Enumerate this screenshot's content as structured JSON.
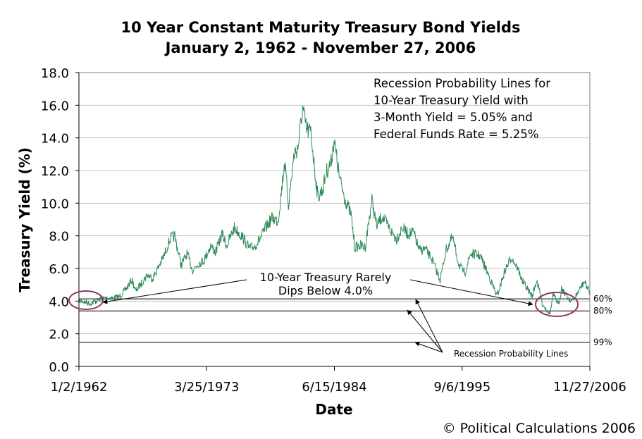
{
  "chart_data": {
    "type": "line",
    "title": "10 Year Constant Maturity Treasury Bond Yields",
    "subtitle": "January 2, 1962 - November 27, 2006",
    "xlabel": "Date",
    "ylabel": "Treasury Yield (%)",
    "ylim": [
      0,
      18
    ],
    "yticks": [
      "0.0",
      "2.0",
      "4.0",
      "6.0",
      "8.0",
      "10.0",
      "12.0",
      "14.0",
      "16.0",
      "18.0"
    ],
    "xlim": [
      "1962-01-02",
      "2006-11-27"
    ],
    "xticks": [
      "1/2/1962",
      "3/25/1973",
      "6/15/1984",
      "9/6/1995",
      "11/27/2006"
    ],
    "grid": true,
    "line_color": "#2e8b57",
    "series": [
      {
        "points": [
          [
            "1962-01-02",
            4.05
          ],
          [
            "1962-07-01",
            3.95
          ],
          [
            "1963-01-01",
            3.85
          ],
          [
            "1963-07-01",
            4.0
          ],
          [
            "1964-01-01",
            4.15
          ],
          [
            "1964-07-01",
            4.2
          ],
          [
            "1965-01-01",
            4.2
          ],
          [
            "1965-07-01",
            4.25
          ],
          [
            "1966-01-01",
            4.6
          ],
          [
            "1966-09-01",
            5.3
          ],
          [
            "1967-01-01",
            4.6
          ],
          [
            "1967-07-01",
            5.1
          ],
          [
            "1968-01-01",
            5.6
          ],
          [
            "1968-07-01",
            5.4
          ],
          [
            "1969-01-01",
            6.1
          ],
          [
            "1969-07-01",
            6.8
          ],
          [
            "1970-01-01",
            7.8
          ],
          [
            "1970-06-01",
            8.0
          ],
          [
            "1971-01-01",
            6.2
          ],
          [
            "1971-07-01",
            6.9
          ],
          [
            "1972-01-01",
            5.9
          ],
          [
            "1972-07-01",
            6.3
          ],
          [
            "1973-01-01",
            6.5
          ],
          [
            "1973-08-01",
            7.4
          ],
          [
            "1974-01-01",
            7.0
          ],
          [
            "1974-08-01",
            8.1
          ],
          [
            "1975-01-01",
            7.4
          ],
          [
            "1975-09-01",
            8.5
          ],
          [
            "1976-06-01",
            7.9
          ],
          [
            "1977-01-01",
            7.2
          ],
          [
            "1977-07-01",
            7.4
          ],
          [
            "1978-01-01",
            7.9
          ],
          [
            "1978-07-01",
            8.6
          ],
          [
            "1979-01-01",
            9.1
          ],
          [
            "1979-07-01",
            8.9
          ],
          [
            "1979-10-01",
            10.4
          ],
          [
            "1980-02-01",
            12.6
          ],
          [
            "1980-06-01",
            9.9
          ],
          [
            "1980-12-01",
            13.0
          ],
          [
            "1981-04-01",
            13.4
          ],
          [
            "1981-09-01",
            15.8
          ],
          [
            "1982-01-01",
            14.5
          ],
          [
            "1982-06-01",
            14.3
          ],
          [
            "1982-09-01",
            12.4
          ],
          [
            "1983-01-01",
            10.4
          ],
          [
            "1983-06-01",
            10.8
          ],
          [
            "1983-10-01",
            11.9
          ],
          [
            "1984-03-01",
            12.5
          ],
          [
            "1984-06-01",
            13.9
          ],
          [
            "1984-12-01",
            11.5
          ],
          [
            "1985-06-01",
            10.2
          ],
          [
            "1985-12-01",
            9.3
          ],
          [
            "1986-04-01",
            7.3
          ],
          [
            "1986-10-01",
            7.4
          ],
          [
            "1987-03-01",
            7.3
          ],
          [
            "1987-10-01",
            10.2
          ],
          [
            "1988-03-01",
            8.6
          ],
          [
            "1988-09-01",
            9.2
          ],
          [
            "1989-06-01",
            8.3
          ],
          [
            "1989-12-01",
            7.8
          ],
          [
            "1990-06-01",
            8.5
          ],
          [
            "1990-12-01",
            8.1
          ],
          [
            "1991-06-01",
            8.2
          ],
          [
            "1991-12-01",
            7.1
          ],
          [
            "1992-06-01",
            7.2
          ],
          [
            "1993-01-01",
            6.6
          ],
          [
            "1993-10-01",
            5.3
          ],
          [
            "1994-04-01",
            7.1
          ],
          [
            "1994-11-01",
            7.9
          ],
          [
            "1995-06-01",
            6.2
          ],
          [
            "1995-12-01",
            5.7
          ],
          [
            "1996-06-01",
            6.9
          ],
          [
            "1997-04-01",
            6.8
          ],
          [
            "1998-01-01",
            5.6
          ],
          [
            "1998-10-01",
            4.3
          ],
          [
            "1999-06-01",
            5.8
          ],
          [
            "2000-01-01",
            6.7
          ],
          [
            "2000-07-01",
            6.1
          ],
          [
            "2001-01-01",
            5.2
          ],
          [
            "2001-11-01",
            4.3
          ],
          [
            "2002-04-01",
            5.3
          ],
          [
            "2002-10-01",
            3.8
          ],
          [
            "2003-06-01",
            3.2
          ],
          [
            "2003-09-01",
            4.4
          ],
          [
            "2004-03-01",
            3.8
          ],
          [
            "2004-06-01",
            4.8
          ],
          [
            "2005-02-01",
            4.1
          ],
          [
            "2005-06-01",
            4.0
          ],
          [
            "2006-06-01",
            5.2
          ],
          [
            "2006-11-27",
            4.55
          ]
        ]
      }
    ],
    "reference_lines": [
      {
        "y": 4.14,
        "label": "60%"
      },
      {
        "y": 3.4,
        "label": "80%"
      },
      {
        "y": 1.48,
        "label": "99%"
      }
    ],
    "annotations": {
      "box_text": [
        "Recession Probability Lines for",
        "10-Year Treasury Yield with",
        "3-Month Yield = 5.05% and",
        "Federal Funds Rate = 5.25%"
      ],
      "callout_text": [
        "10-Year Treasury Rarely",
        "Dips Below 4.0%"
      ],
      "lines_label": "Recession Probability Lines",
      "highlight_color": "#8b3a62"
    }
  },
  "footer": {
    "copyright": "© Political Calculations 2006"
  }
}
